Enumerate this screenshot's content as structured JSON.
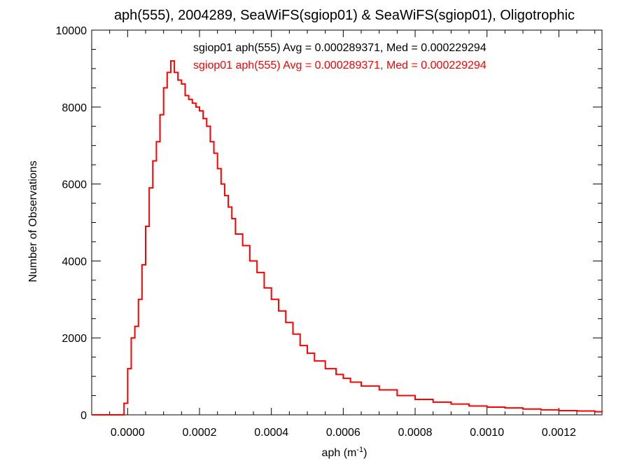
{
  "chart_data": {
    "type": "line",
    "title": "aph(555), 2004289, SeaWiFS(sgiop01) & SeaWiFS(sgiop01), Oligotrophic",
    "xlabel": "aph (m",
    "xlabel_sup": "-1",
    "xlabel_end": ")",
    "ylabel": "Number of Observations",
    "xlim": [
      -0.0001,
      0.00132
    ],
    "ylim": [
      0,
      10000
    ],
    "x_ticks": [
      0.0,
      0.0002,
      0.0004,
      0.0006,
      0.0008,
      0.001,
      0.0012
    ],
    "x_tick_labels": [
      "0.0000",
      "0.0002",
      "0.0004",
      "0.0006",
      "0.0008",
      "0.0010",
      "0.0012"
    ],
    "y_ticks": [
      0,
      2000,
      4000,
      6000,
      8000,
      10000
    ],
    "y_tick_labels": [
      "0",
      "2000",
      "4000",
      "6000",
      "8000",
      "10000"
    ],
    "grid": false,
    "legend_placement": "top-right",
    "annotations": [
      {
        "text": "sgiop01 aph(555) Avg = 0.000289371, Med = 0.000229294",
        "color": "#000000"
      },
      {
        "text": "sgiop01 aph(555) Avg = 0.000289371, Med = 0.000229294",
        "color": "#ff0000"
      }
    ],
    "series": [
      {
        "color": "#ff0000",
        "style": "step",
        "x": [
          -0.0001,
          -3e-05,
          -2e-05,
          -1e-05,
          0.0,
          1e-05,
          2e-05,
          3e-05,
          4e-05,
          5e-05,
          6e-05,
          7e-05,
          8e-05,
          9e-05,
          0.0001,
          0.00011,
          0.00012,
          0.00013,
          0.00014,
          0.00015,
          0.00016,
          0.00017,
          0.00018,
          0.00019,
          0.0002,
          0.00021,
          0.00022,
          0.00023,
          0.00024,
          0.00025,
          0.00026,
          0.00027,
          0.00028,
          0.00029,
          0.0003,
          0.00032,
          0.00034,
          0.00036,
          0.00038,
          0.0004,
          0.00042,
          0.00044,
          0.00046,
          0.00048,
          0.0005,
          0.00052,
          0.00055,
          0.00058,
          0.0006,
          0.00062,
          0.00065,
          0.0007,
          0.00075,
          0.0008,
          0.00085,
          0.0009,
          0.00095,
          0.001,
          0.00105,
          0.0011,
          0.00115,
          0.0012,
          0.00125,
          0.0013,
          0.00132
        ],
        "y": [
          0,
          0,
          0,
          300,
          1200,
          2000,
          2300,
          3000,
          3900,
          4900,
          5900,
          6600,
          7100,
          7800,
          8500,
          8900,
          9200,
          8900,
          8700,
          8600,
          8300,
          8200,
          8100,
          8000,
          7900,
          7700,
          7500,
          7100,
          6800,
          6400,
          6000,
          5700,
          5400,
          5100,
          4700,
          4400,
          4000,
          3700,
          3300,
          3000,
          2700,
          2400,
          2100,
          1800,
          1600,
          1400,
          1200,
          1050,
          950,
          850,
          750,
          650,
          500,
          400,
          330,
          280,
          230,
          200,
          180,
          150,
          130,
          110,
          100,
          80,
          70
        ]
      }
    ]
  }
}
